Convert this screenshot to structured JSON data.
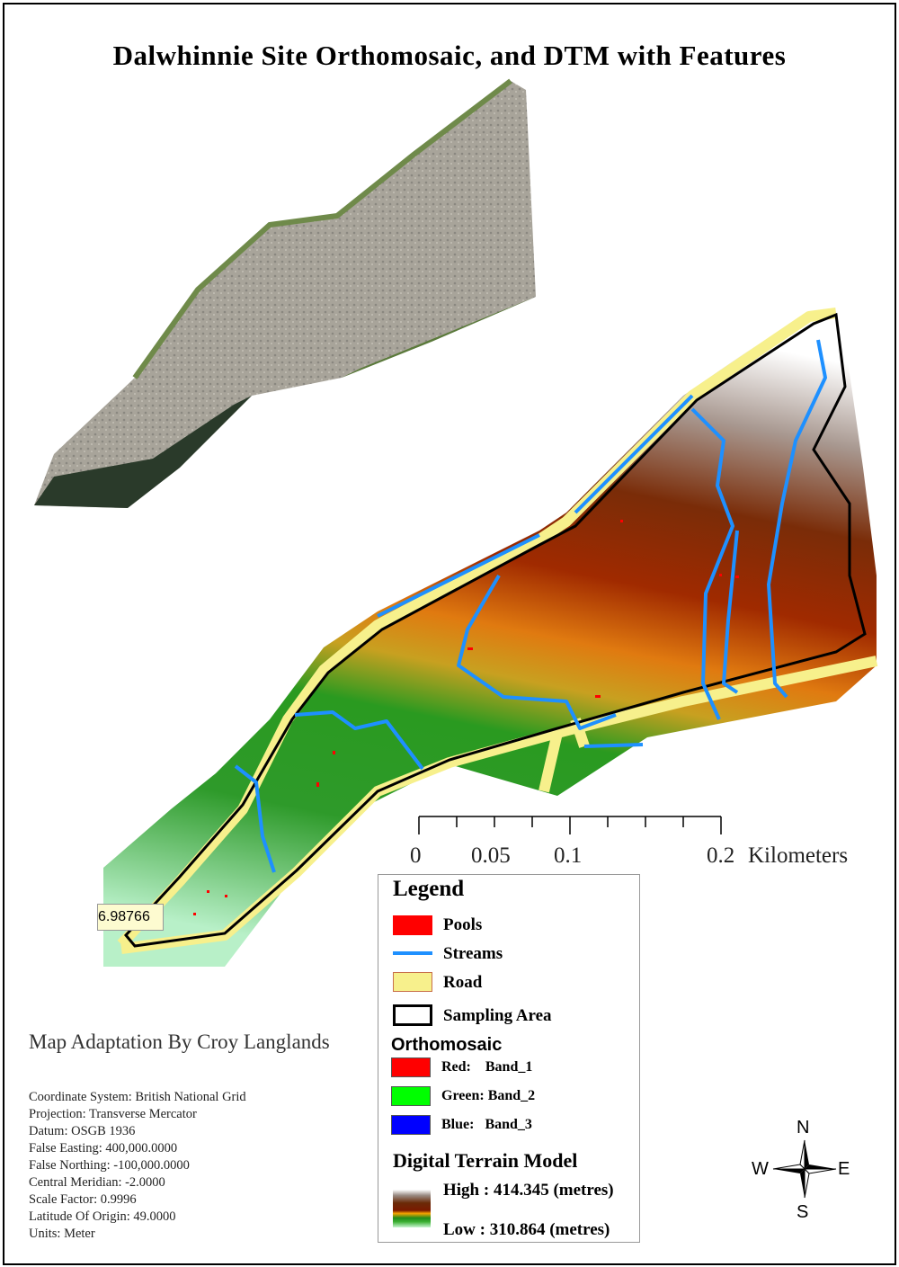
{
  "title": "Dalwhinnie Site Orthomosaic, and DTM with Features",
  "coordinate_readout": "6.98766",
  "scale_bar": {
    "ticks": [
      "0",
      "0.05",
      "0.1",
      "0.2"
    ],
    "unit": "Kilometers"
  },
  "legend": {
    "title": "Legend",
    "items": [
      {
        "label": "Pools",
        "color": "#ff0000"
      },
      {
        "label": "Streams",
        "color": "#1e90ff"
      },
      {
        "label": "Road",
        "color": "#f7f08c"
      },
      {
        "label": "Sampling Area",
        "color": "#000000"
      }
    ],
    "orthomosaic": {
      "title": "Orthomosaic",
      "bands": [
        {
          "label": "Red:    Band_1",
          "color": "#ff0000"
        },
        {
          "label": "Green: Band_2",
          "color": "#00ff00"
        },
        {
          "label": "Blue:   Band_3",
          "color": "#0000ff"
        }
      ]
    },
    "dtm": {
      "title": "Digital Terrain Model",
      "high": "High : 414.345 (metres)",
      "low": "Low : 310.864 (metres)"
    }
  },
  "author": "Map Adaptation By Croy Langlands",
  "metadata": [
    "Coordinate System: British National Grid",
    "Projection: Transverse Mercator",
    "Datum: OSGB 1936",
    "False Easting: 400,000.0000",
    "False Northing: -100,000.0000",
    "Central Meridian: -2.0000",
    "Scale Factor: 0.9996",
    "Latitude Of Origin: 49.0000",
    "Units: Meter"
  ],
  "compass": {
    "n": "N",
    "s": "S",
    "e": "E",
    "w": "W"
  }
}
